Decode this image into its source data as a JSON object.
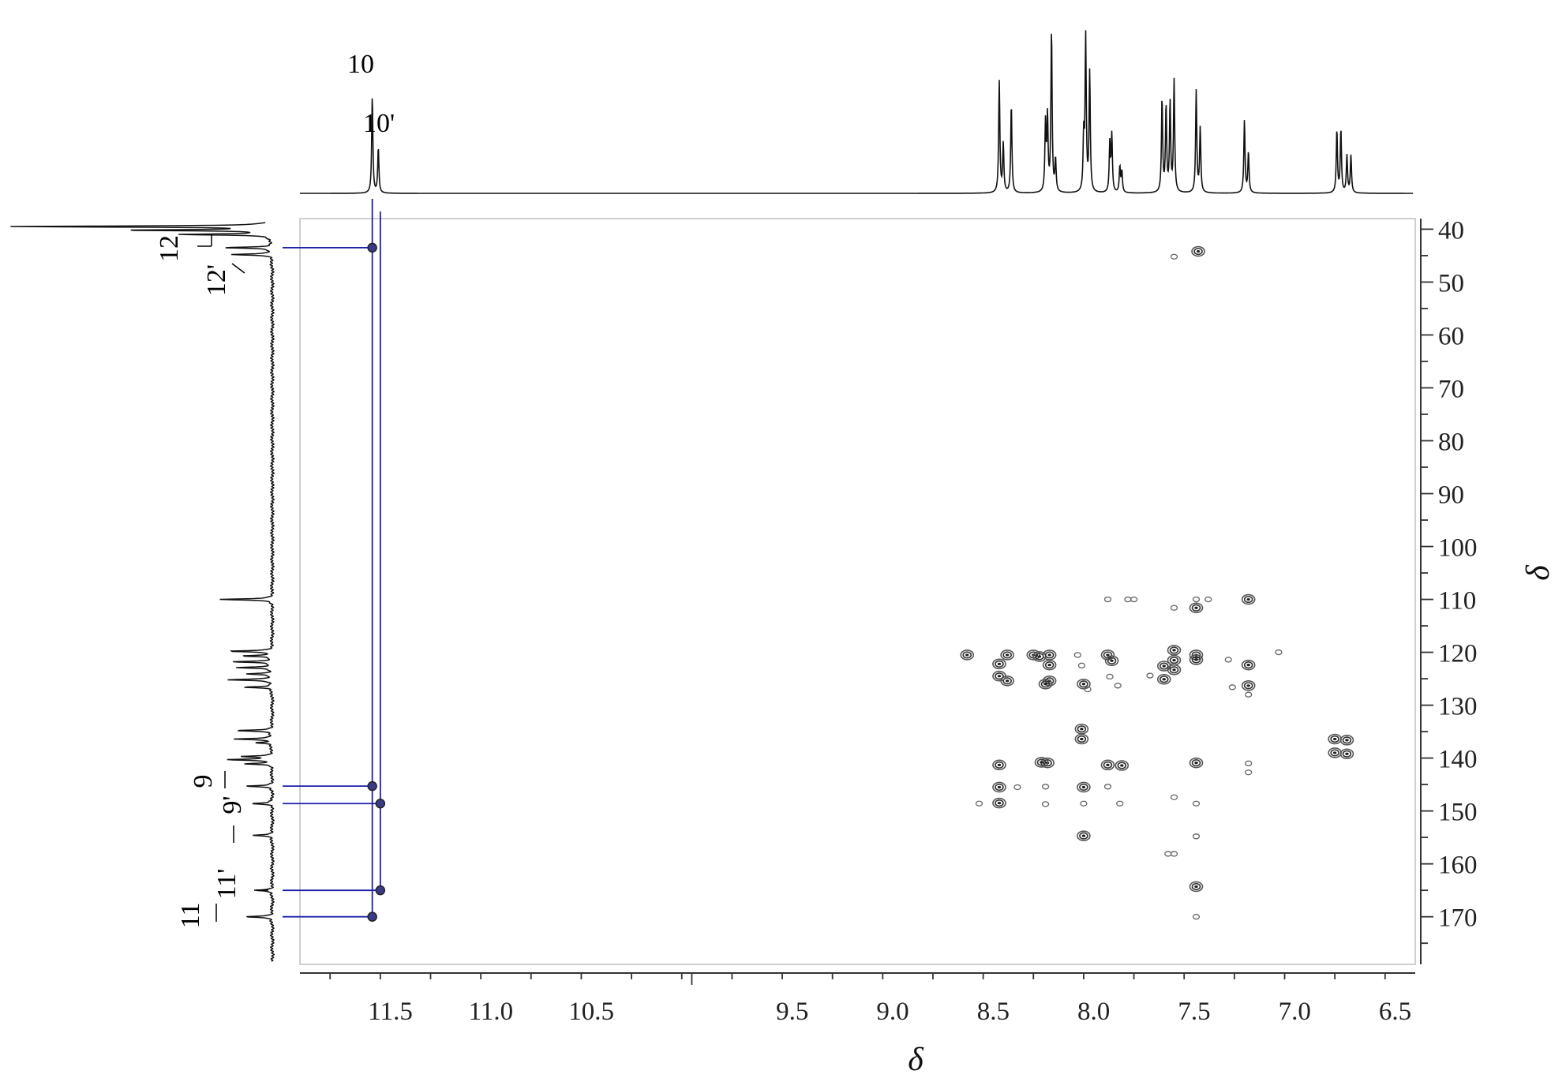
{
  "chart_data": {
    "type": "heatmap",
    "subtype": "2D NMR HMBC correlation spectrum",
    "xlabel": "δ",
    "ylabel": "δ",
    "x_range": [
      11.95,
      6.4
    ],
    "y_range": [
      38,
      179
    ],
    "x_ticks": [
      "11.5",
      "11.0",
      "10.5",
      "9.5",
      "9.0",
      "8.5",
      "8.0",
      "7.5",
      "7.0",
      "6.5"
    ],
    "x_tick_values": [
      11.5,
      11.0,
      10.5,
      9.5,
      9.0,
      8.5,
      8.0,
      7.5,
      7.0,
      6.5
    ],
    "y_ticks": [
      "40",
      "50",
      "60",
      "70",
      "80",
      "90",
      "100",
      "110",
      "120",
      "130",
      "140",
      "150",
      "160",
      "170"
    ],
    "y_tick_values": [
      40,
      50,
      60,
      70,
      80,
      90,
      100,
      110,
      120,
      130,
      140,
      150,
      160,
      170
    ],
    "h1_peak_labels": [
      {
        "label": "10",
        "shift": 11.59
      },
      {
        "label": "10'",
        "shift": 11.56
      }
    ],
    "c13_peak_labels": [
      {
        "label": "12",
        "shift": 43.5
      },
      {
        "label": "12'",
        "shift": 44.8
      },
      {
        "label": "9",
        "shift": 145.3
      },
      {
        "label": "9'",
        "shift": 148.6
      },
      {
        "label": "11'",
        "shift": 165.0
      },
      {
        "label": "11",
        "shift": 170.0
      }
    ],
    "highlighted_correlations": [
      {
        "h": 11.59,
        "c": 43.5
      },
      {
        "h": 11.59,
        "c": 145.3
      },
      {
        "h": 11.55,
        "c": 148.6
      },
      {
        "h": 11.55,
        "c": 165.0
      },
      {
        "h": 11.59,
        "c": 170.0
      }
    ],
    "h1_spectrum_peaks": [
      {
        "shift": 11.59,
        "height": 0.6
      },
      {
        "shift": 11.56,
        "height": 0.28
      },
      {
        "shift": 8.47,
        "height": 0.69
      },
      {
        "shift": 8.45,
        "height": 0.3
      },
      {
        "shift": 8.41,
        "height": 0.55
      },
      {
        "shift": 8.24,
        "height": 0.42
      },
      {
        "shift": 8.23,
        "height": 0.45
      },
      {
        "shift": 8.21,
        "height": 1.0
      },
      {
        "shift": 8.19,
        "height": 0.2
      },
      {
        "shift": 8.05,
        "height": 0.33
      },
      {
        "shift": 8.04,
        "height": 0.95
      },
      {
        "shift": 8.02,
        "height": 0.74
      },
      {
        "shift": 7.92,
        "height": 0.3
      },
      {
        "shift": 7.91,
        "height": 0.35
      },
      {
        "shift": 7.87,
        "height": 0.16
      },
      {
        "shift": 7.86,
        "height": 0.13
      },
      {
        "shift": 7.66,
        "height": 0.58
      },
      {
        "shift": 7.64,
        "height": 0.53
      },
      {
        "shift": 7.62,
        "height": 0.55
      },
      {
        "shift": 7.6,
        "height": 0.69
      },
      {
        "shift": 7.49,
        "height": 0.63
      },
      {
        "shift": 7.47,
        "height": 0.4
      },
      {
        "shift": 7.25,
        "height": 0.45
      },
      {
        "shift": 7.23,
        "height": 0.25
      },
      {
        "shift": 6.79,
        "height": 0.39
      },
      {
        "shift": 6.77,
        "height": 0.39
      },
      {
        "shift": 6.74,
        "height": 0.23
      },
      {
        "shift": 6.72,
        "height": 0.23
      }
    ],
    "c13_spectrum_peaks": [
      {
        "shift": 39.5,
        "height": 1.0
      },
      {
        "shift": 40.2,
        "height": 0.55
      },
      {
        "shift": 41.0,
        "height": 0.35
      },
      {
        "shift": 43.5,
        "height": 0.18
      },
      {
        "shift": 44.8,
        "height": 0.16
      },
      {
        "shift": 110.0,
        "height": 0.2
      },
      {
        "shift": 119.8,
        "height": 0.17
      },
      {
        "shift": 120.7,
        "height": 0.11
      },
      {
        "shift": 121.8,
        "height": 0.15
      },
      {
        "shift": 122.9,
        "height": 0.13
      },
      {
        "shift": 124.1,
        "height": 0.1
      },
      {
        "shift": 125.2,
        "height": 0.17
      },
      {
        "shift": 126.6,
        "height": 0.11
      },
      {
        "shift": 134.8,
        "height": 0.14
      },
      {
        "shift": 136.4,
        "height": 0.15
      },
      {
        "shift": 137.1,
        "height": 0.06
      },
      {
        "shift": 139.7,
        "height": 0.12
      },
      {
        "shift": 140.3,
        "height": 0.17
      },
      {
        "shift": 141.1,
        "height": 0.1
      },
      {
        "shift": 145.3,
        "height": 0.1
      },
      {
        "shift": 148.6,
        "height": 0.08
      },
      {
        "shift": 154.6,
        "height": 0.08
      },
      {
        "shift": 165.0,
        "height": 0.07
      },
      {
        "shift": 170.0,
        "height": 0.11
      }
    ],
    "cross_peaks": [
      {
        "h": 7.6,
        "c": 45.2,
        "weak": true
      },
      {
        "h": 7.48,
        "c": 44.2
      },
      {
        "h": 7.93,
        "c": 110.0,
        "weak": true
      },
      {
        "h": 7.83,
        "c": 110.0,
        "weak": true
      },
      {
        "h": 7.8,
        "c": 110.0,
        "weak": true
      },
      {
        "h": 7.6,
        "c": 111.6,
        "weak": true
      },
      {
        "h": 7.49,
        "c": 110.0,
        "weak": true
      },
      {
        "h": 7.43,
        "c": 110.0,
        "weak": true
      },
      {
        "h": 7.49,
        "c": 111.6
      },
      {
        "h": 7.23,
        "c": 110.0
      },
      {
        "h": 8.63,
        "c": 120.5
      },
      {
        "h": 8.47,
        "c": 122.2
      },
      {
        "h": 8.43,
        "c": 120.5
      },
      {
        "h": 8.43,
        "c": 125.4
      },
      {
        "h": 8.47,
        "c": 124.5
      },
      {
        "h": 8.3,
        "c": 120.5
      },
      {
        "h": 8.27,
        "c": 120.8
      },
      {
        "h": 8.22,
        "c": 120.5
      },
      {
        "h": 8.22,
        "c": 122.4
      },
      {
        "h": 8.22,
        "c": 125.4
      },
      {
        "h": 8.24,
        "c": 126.0
      },
      {
        "h": 8.08,
        "c": 120.5,
        "weak": true
      },
      {
        "h": 8.06,
        "c": 122.5,
        "weak": true
      },
      {
        "h": 8.05,
        "c": 126.0
      },
      {
        "h": 8.03,
        "c": 127.0,
        "weak": true
      },
      {
        "h": 7.93,
        "c": 120.5
      },
      {
        "h": 7.91,
        "c": 121.6
      },
      {
        "h": 7.92,
        "c": 124.6,
        "weak": true
      },
      {
        "h": 7.88,
        "c": 126.3,
        "weak": true
      },
      {
        "h": 7.72,
        "c": 124.4,
        "weak": true
      },
      {
        "h": 7.65,
        "c": 122.6
      },
      {
        "h": 7.65,
        "c": 125.1
      },
      {
        "h": 7.6,
        "c": 119.6
      },
      {
        "h": 7.6,
        "c": 121.5
      },
      {
        "h": 7.6,
        "c": 123.3
      },
      {
        "h": 7.49,
        "c": 120.5
      },
      {
        "h": 7.49,
        "c": 121.4
      },
      {
        "h": 7.33,
        "c": 121.4,
        "weak": true
      },
      {
        "h": 7.23,
        "c": 122.4
      },
      {
        "h": 7.23,
        "c": 126.3
      },
      {
        "h": 7.23,
        "c": 128.0,
        "weak": true
      },
      {
        "h": 7.31,
        "c": 126.6,
        "weak": true
      },
      {
        "h": 7.08,
        "c": 120.0,
        "weak": true
      },
      {
        "h": 8.06,
        "c": 134.5
      },
      {
        "h": 8.06,
        "c": 136.4
      },
      {
        "h": 6.8,
        "c": 136.4
      },
      {
        "h": 6.74,
        "c": 136.6
      },
      {
        "h": 6.8,
        "c": 139.0
      },
      {
        "h": 6.74,
        "c": 139.2
      },
      {
        "h": 8.47,
        "c": 141.3
      },
      {
        "h": 8.23,
        "c": 140.9
      },
      {
        "h": 8.26,
        "c": 140.8
      },
      {
        "h": 7.93,
        "c": 141.3
      },
      {
        "h": 7.86,
        "c": 141.4
      },
      {
        "h": 7.49,
        "c": 140.9
      },
      {
        "h": 7.23,
        "c": 141.0,
        "weak": true
      },
      {
        "h": 7.23,
        "c": 142.7,
        "weak": true
      },
      {
        "h": 8.47,
        "c": 145.5
      },
      {
        "h": 8.47,
        "c": 148.5
      },
      {
        "h": 8.38,
        "c": 145.5,
        "weak": true
      },
      {
        "h": 8.57,
        "c": 148.6,
        "weak": true
      },
      {
        "h": 8.24,
        "c": 145.4,
        "weak": true
      },
      {
        "h": 8.24,
        "c": 148.7,
        "weak": true
      },
      {
        "h": 8.05,
        "c": 145.5
      },
      {
        "h": 8.05,
        "c": 148.6,
        "weak": true
      },
      {
        "h": 7.93,
        "c": 145.4,
        "weak": true
      },
      {
        "h": 7.87,
        "c": 148.6,
        "weak": true
      },
      {
        "h": 7.6,
        "c": 147.4,
        "weak": true
      },
      {
        "h": 7.49,
        "c": 148.6,
        "weak": true
      },
      {
        "h": 8.05,
        "c": 154.7
      },
      {
        "h": 7.49,
        "c": 154.8,
        "weak": true
      },
      {
        "h": 7.63,
        "c": 158.1,
        "weak": true
      },
      {
        "h": 7.6,
        "c": 158.1,
        "weak": true
      },
      {
        "h": 7.49,
        "c": 164.3
      },
      {
        "h": 7.49,
        "c": 170.0,
        "weak": true
      }
    ]
  }
}
